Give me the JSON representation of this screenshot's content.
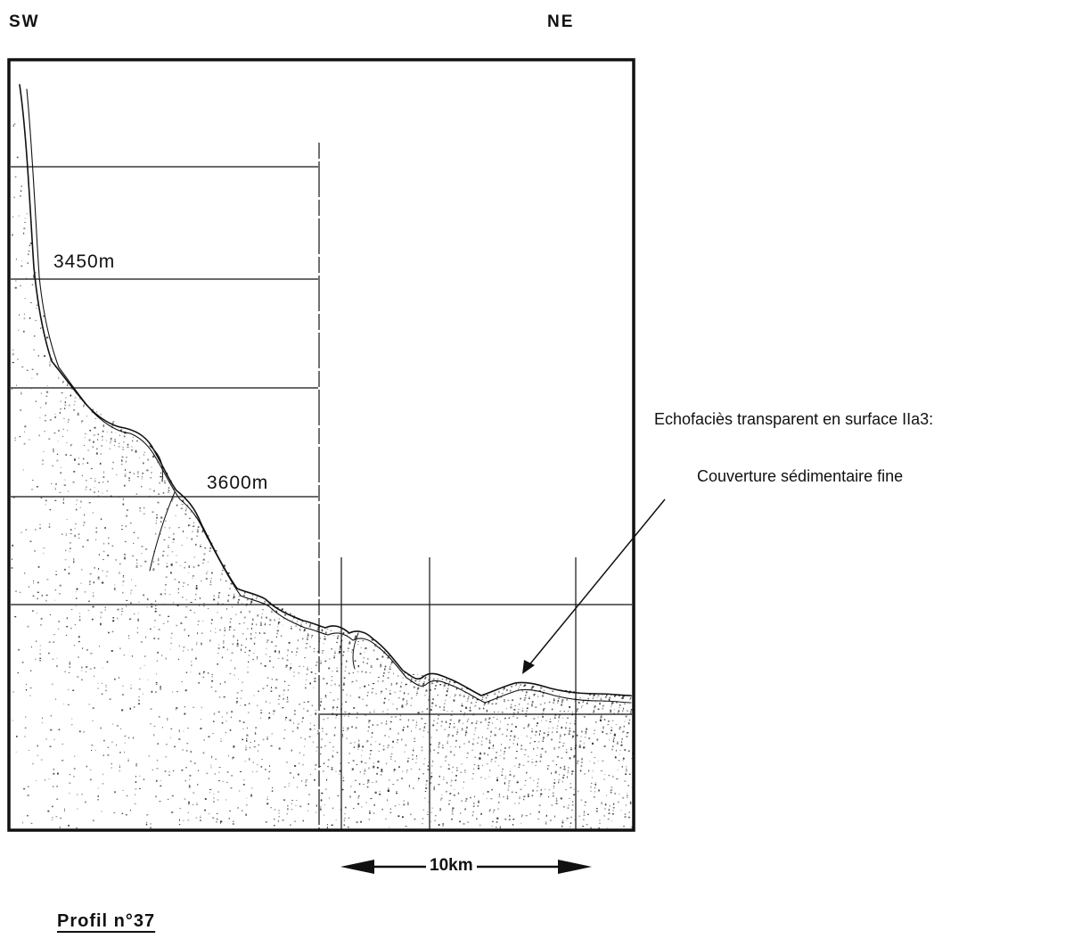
{
  "orientation": {
    "left": "SW",
    "right": "NE"
  },
  "depth_labels": {
    "upper": "3450m",
    "lower": "3600m"
  },
  "annotation": {
    "line1": "Echofaciès transparent en surface  IIa3:",
    "line2": "Couverture sédimentaire fine"
  },
  "scale_bar": {
    "label": "10km"
  },
  "profile_title": "Profil n°37",
  "colors": {
    "ink": "#111111",
    "paper": "#ffffff"
  }
}
